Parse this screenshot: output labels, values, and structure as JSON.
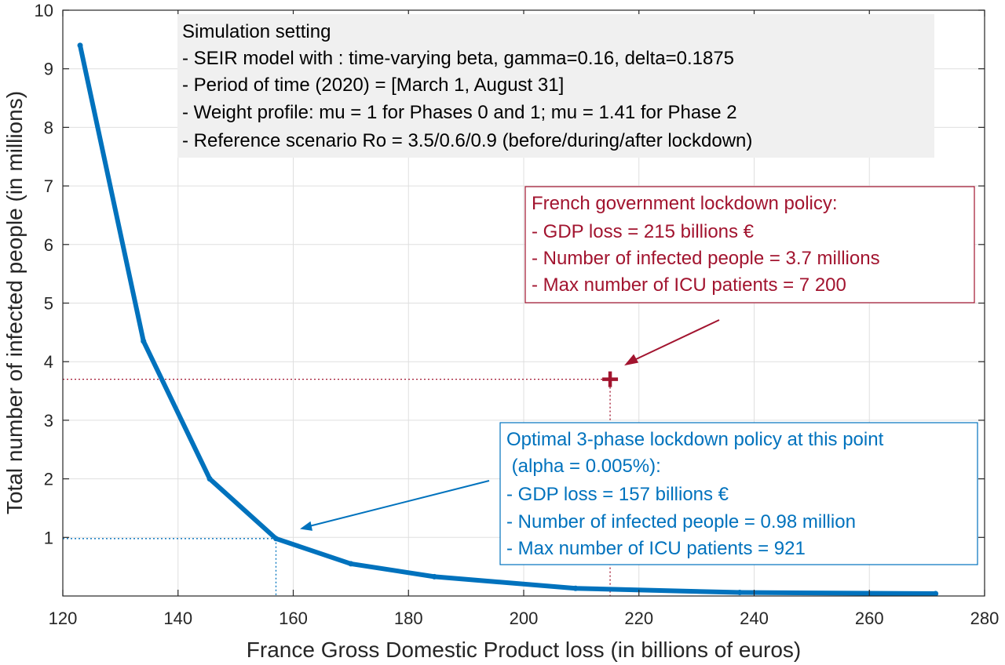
{
  "chart_data": {
    "type": "line",
    "xlabel": "France Gross Domestic Product loss (in billions of euros)",
    "ylabel": "Total number of infected people (in millions)",
    "xlim": [
      120,
      280
    ],
    "ylim": [
      0,
      10
    ],
    "xticks": [
      120,
      140,
      160,
      180,
      200,
      220,
      240,
      260,
      280
    ],
    "yticks": [
      1,
      2,
      3,
      4,
      5,
      6,
      7,
      8,
      9,
      10
    ],
    "grid": true,
    "series": [
      {
        "color": "#0072BD",
        "x": [
          123,
          134,
          145.5,
          157,
          170,
          184.5,
          209,
          237.5,
          271.5
        ],
        "y": [
          9.4,
          4.35,
          2.0,
          0.98,
          0.55,
          0.33,
          0.13,
          0.06,
          0.04
        ]
      }
    ],
    "reference_point": {
      "x": 215,
      "y": 3.7,
      "color": "#A2142F"
    },
    "optimal_point": {
      "x": 157,
      "y": 0.98,
      "color": "#0072BD"
    },
    "annotations": {
      "simulation_setting": [
        "Simulation setting",
        "- SEIR model with : time-varying beta,  gamma=0.16, delta=0.1875",
        "- Period of time (2020) = [March 1, August 31]",
        "- Weight profile: mu = 1 for Phases 0 and 1; mu = 1.41 for Phase 2",
        "- Reference scenario Ro = 3.5/0.6/0.9  (before/during/after lockdown)"
      ],
      "french_policy": [
        "French government lockdown policy:",
        "- GDP loss = 215 billions €",
        "- Number of infected people = 3.7 millions",
        "- Max number of ICU patients = 7 200"
      ],
      "optimal_policy": [
        "Optimal 3-phase lockdown policy at this point",
        " (alpha = 0.005%):",
        "- GDP loss = 157 billions €",
        "- Number of infected people = 0.98 million",
        "- Max number of ICU patients = 921"
      ]
    },
    "colors": {
      "curve": "#0072BD",
      "french": "#A2142F",
      "setting_bg": "#F0F0F0",
      "grid": "#DFDFDF",
      "axis": "#262626"
    }
  }
}
